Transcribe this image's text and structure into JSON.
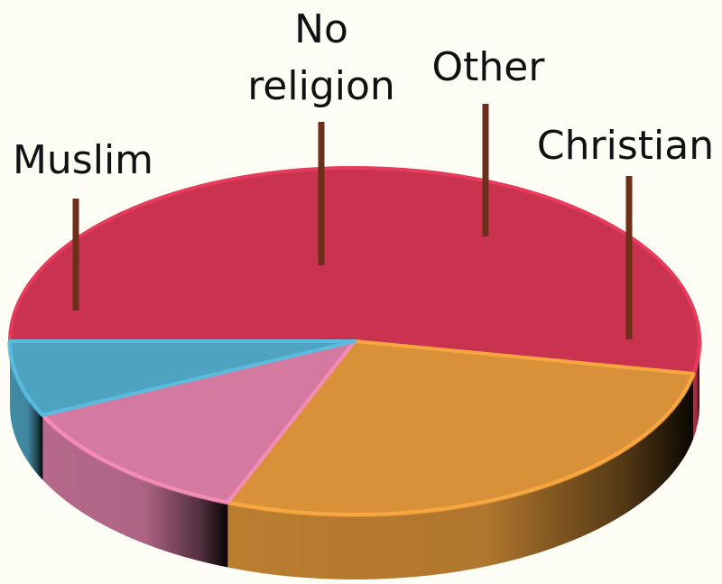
{
  "chart_data": {
    "type": "pie",
    "title": "",
    "series": [
      {
        "values": [
          {
            "label": "Christian",
            "value": 53,
            "color": "#c93350"
          },
          {
            "label": "Muslim",
            "value": 28,
            "color": "#d89138"
          },
          {
            "label": "No religion",
            "value": 12,
            "color": "#d47aa0"
          },
          {
            "label": "Other",
            "value": 7,
            "color": "#4da3c0"
          }
        ]
      }
    ],
    "labels": {
      "muslim": "Muslim",
      "no_religion_line1": "No",
      "no_religion_line2": "religion",
      "other": "Other",
      "christian": "Christian"
    },
    "leader_color": "#6b2f1a",
    "background": "#fdfdf5",
    "style": "3d-tilted",
    "legend": "none"
  }
}
